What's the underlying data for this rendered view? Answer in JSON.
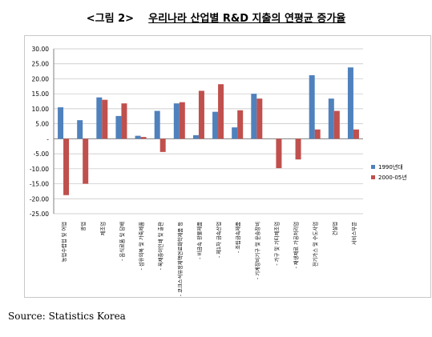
{
  "title": {
    "prefix": "<그림 2>",
    "text": "우리나라 산업별 R&D 지출의 연평균 증가율"
  },
  "source": "Source: Statistics Korea",
  "colors": {
    "series1": "#4f81bd",
    "series2": "#c0504d",
    "grid": "#c0c0c0",
    "axis": "#808080"
  },
  "chart_data": {
    "type": "bar",
    "ylim": [
      -25,
      30
    ],
    "yticks": [
      "30.00",
      "25.00",
      "20.00",
      "15.00",
      "10.00",
      "5.00",
      "-",
      "-5.00",
      "-10.00",
      "-15.00",
      "-20.00",
      "-25.00"
    ],
    "ytick_values": [
      30,
      25,
      20,
      15,
      10,
      5,
      0,
      -5,
      -10,
      -15,
      -20,
      -25
    ],
    "grid": true,
    "legend_position": "right",
    "categories": [
      "농업수렵업 및 어업",
      "광업",
      "제조업",
      "- 음식료품 및 담배",
      "- 섬유의복 및 가죽제품",
      "- 목재종이인쇄 및 출판",
      "- 코크스석유정제핵연료화학제품 등",
      "- 비금속 광물제품",
      "- 제1차 금속산업",
      "- 조립금속제품",
      "- 기계장비기구 및 운송장비",
      "- 가구 및 기타제조업",
      "- 재생재료 가공처리업",
      "전기가스 및 수도사업",
      "건설업",
      "서비스부문"
    ],
    "series": [
      {
        "name": "1990년대",
        "values": [
          10.5,
          6.2,
          13.8,
          7.6,
          1.0,
          9.3,
          11.8,
          1.2,
          9.0,
          3.8,
          15.0,
          0,
          0,
          21.2,
          13.4,
          23.8
        ]
      },
      {
        "name": "2000-05년",
        "values": [
          -18.8,
          -15.0,
          13.0,
          11.8,
          0.6,
          -4.4,
          12.2,
          16.0,
          18.2,
          9.5,
          13.4,
          -9.8,
          -6.9,
          3.1,
          9.3,
          3.1
        ]
      }
    ]
  }
}
